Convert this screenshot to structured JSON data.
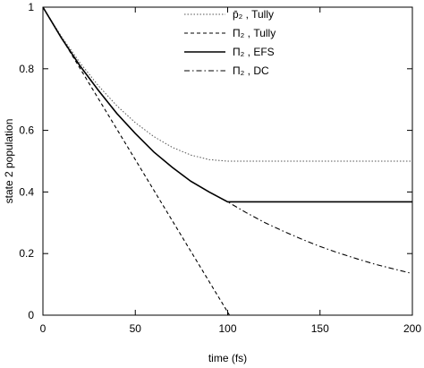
{
  "chart_data": {
    "type": "line",
    "xlabel": "time (fs)",
    "ylabel": "state 2 population",
    "xlim": [
      0,
      200
    ],
    "ylim": [
      0,
      1
    ],
    "x_ticks": [
      0,
      50,
      100,
      150,
      200
    ],
    "y_ticks": [
      0,
      0.2,
      0.4,
      0.6,
      0.8,
      1
    ],
    "x_tick_labels": [
      "0",
      "50",
      "100",
      "150",
      "200"
    ],
    "y_tick_labels": [
      "0",
      "0.2",
      "0.4",
      "0.6",
      "0.8",
      "1"
    ],
    "grid": false,
    "legend_position": "top-right",
    "series": [
      {
        "name": "p̄₂ , Tully",
        "style": "dotted",
        "color": "#555555",
        "x": [
          0,
          10,
          20,
          30,
          40,
          50,
          60,
          70,
          80,
          90,
          100,
          110,
          120,
          150,
          200
        ],
        "y": [
          1.0,
          0.905,
          0.82,
          0.745,
          0.68,
          0.625,
          0.58,
          0.545,
          0.52,
          0.505,
          0.5,
          0.5,
          0.5,
          0.5,
          0.5
        ]
      },
      {
        "name": "Π₂ , Tully",
        "style": "dashed",
        "color": "#000000",
        "x": [
          0,
          100,
          101,
          150,
          200
        ],
        "y": [
          1.0,
          0.01,
          0.0,
          0.0,
          0.0
        ]
      },
      {
        "name": "Π₂ , EFS",
        "style": "solid",
        "color": "#000000",
        "x": [
          0,
          10,
          20,
          30,
          40,
          50,
          60,
          70,
          80,
          90,
          100,
          150,
          200
        ],
        "y": [
          1.0,
          0.9,
          0.81,
          0.73,
          0.655,
          0.59,
          0.53,
          0.48,
          0.435,
          0.4,
          0.368,
          0.368,
          0.368
        ]
      },
      {
        "name": "Π₂ , DC",
        "style": "dashdot",
        "color": "#000000",
        "x": [
          0,
          10,
          20,
          30,
          40,
          50,
          60,
          70,
          80,
          90,
          100,
          110,
          120,
          130,
          140,
          150,
          160,
          170,
          180,
          190,
          200
        ],
        "y": [
          1.0,
          0.9,
          0.81,
          0.73,
          0.655,
          0.59,
          0.53,
          0.48,
          0.435,
          0.4,
          0.368,
          0.333,
          0.301,
          0.273,
          0.247,
          0.223,
          0.202,
          0.183,
          0.165,
          0.15,
          0.135
        ]
      }
    ]
  }
}
